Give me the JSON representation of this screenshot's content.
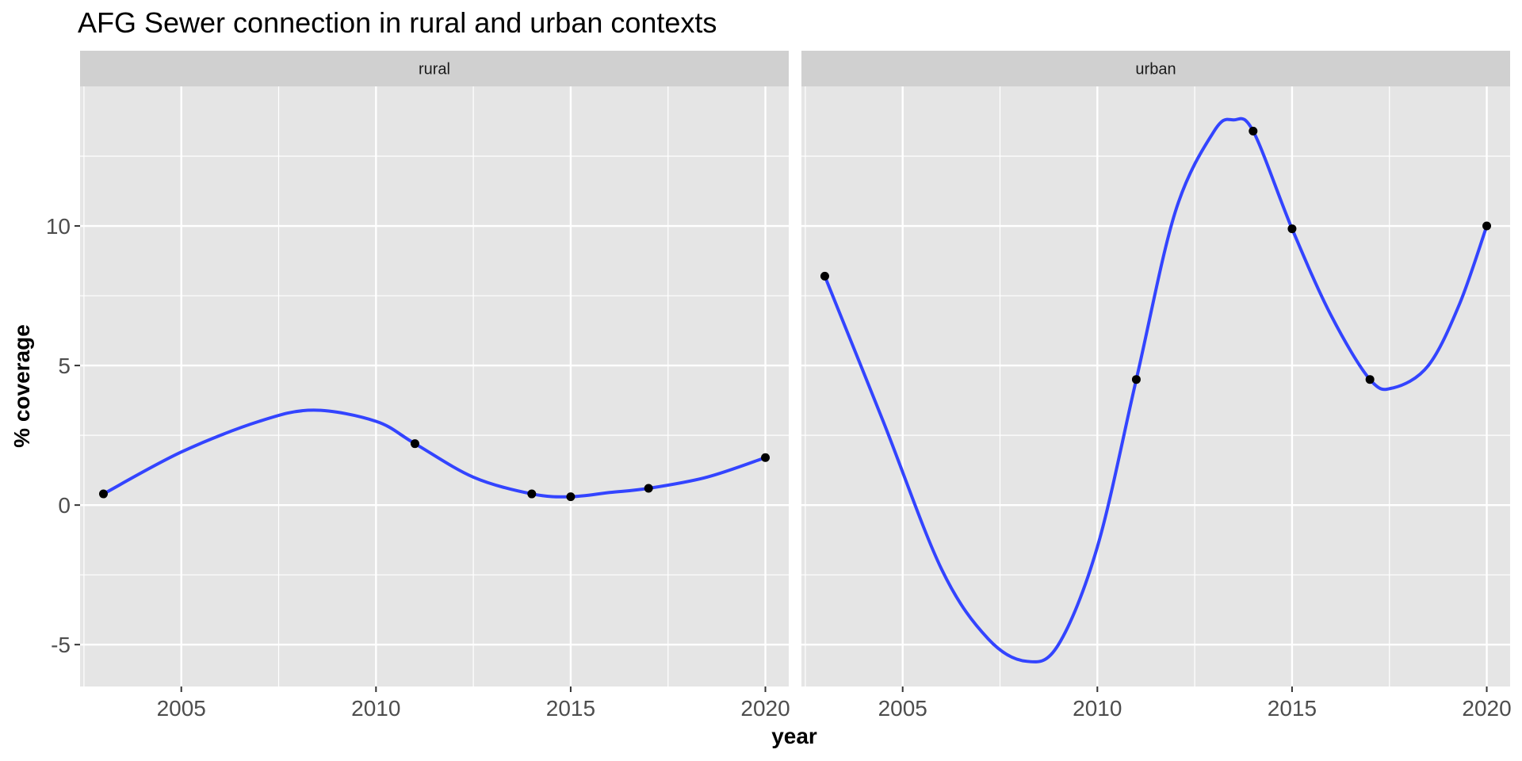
{
  "chart_data": {
    "type": "line",
    "title": "AFG Sewer connection in rural and urban contexts",
    "xlabel": "year",
    "ylabel": "% coverage",
    "xlim": [
      2002.4,
      2020.6
    ],
    "ylim": [
      -6.5,
      15
    ],
    "x_ticks": [
      2005,
      2010,
      2015,
      2020
    ],
    "x_tick_labels": [
      "2005",
      "2010",
      "2015",
      "2020"
    ],
    "y_ticks": [
      -5,
      0,
      5,
      10
    ],
    "y_tick_labels": [
      "-5",
      "0",
      "5",
      "10"
    ],
    "grid": true,
    "panels": [
      {
        "strip": "rural",
        "points": {
          "x": [
            2003,
            2011,
            2014,
            2015,
            2017,
            2020
          ],
          "y": [
            0.4,
            2.2,
            0.4,
            0.3,
            0.6,
            1.7
          ]
        },
        "smooth": {
          "x": [
            2003,
            2005,
            2007,
            2008.4,
            2010,
            2011,
            2012.5,
            2014,
            2015,
            2016,
            2017,
            2018.5,
            2020
          ],
          "y": [
            0.4,
            1.9,
            3.0,
            3.4,
            3.0,
            2.2,
            1.0,
            0.4,
            0.3,
            0.45,
            0.6,
            1.0,
            1.7
          ]
        }
      },
      {
        "strip": "urban",
        "points": {
          "x": [
            2003,
            2011,
            2014,
            2015,
            2017,
            2020
          ],
          "y": [
            8.2,
            4.5,
            13.4,
            9.9,
            4.5,
            10.0
          ]
        },
        "smooth": {
          "x": [
            2003,
            2004.5,
            2006,
            2007.2,
            2008.2,
            2009,
            2010,
            2011,
            2012,
            2013,
            2013.5,
            2014,
            2015,
            2016,
            2017,
            2017.6,
            2018.5,
            2019.3,
            2020
          ],
          "y": [
            8.2,
            3.0,
            -2.3,
            -4.8,
            -5.6,
            -5.0,
            -1.5,
            4.5,
            10.5,
            13.4,
            13.8,
            13.4,
            9.9,
            6.8,
            4.5,
            4.2,
            5.0,
            7.2,
            10.0
          ]
        }
      }
    ],
    "colors": {
      "smooth_line": "#3344ff",
      "points": "#000000",
      "panel_bg": "#e5e5e5",
      "strip_bg": "#d0d0d0",
      "grid": "#ffffff",
      "tick": "#333333"
    }
  }
}
